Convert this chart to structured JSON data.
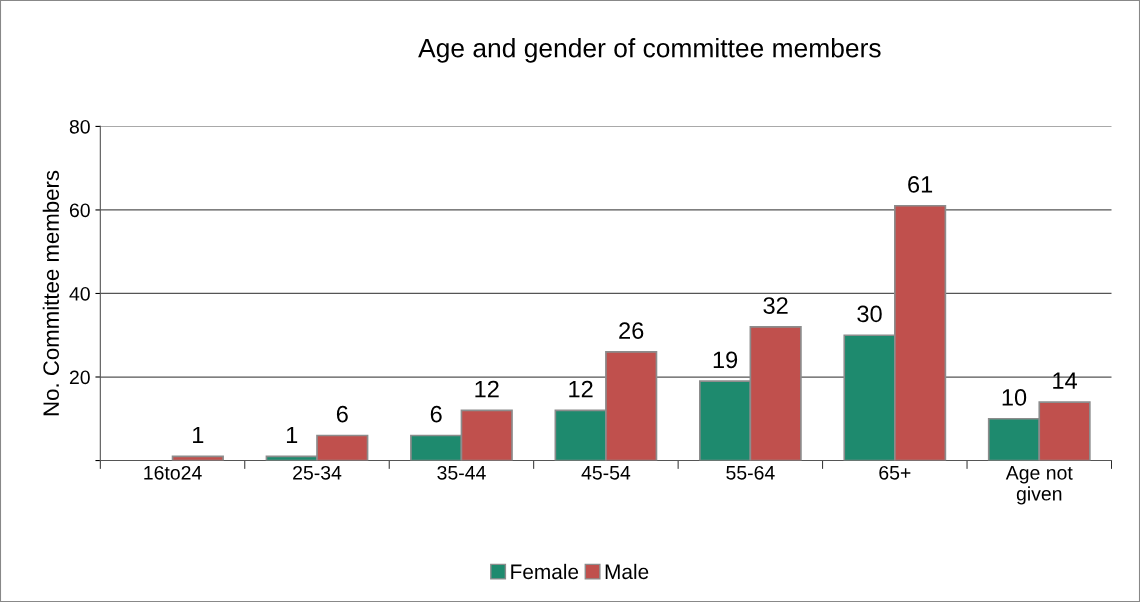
{
  "chart_data": {
    "type": "bar",
    "title": "Age and gender of committee members",
    "ylabel": "No. Committee members",
    "categories": [
      "16to24",
      "25-34",
      "35-44",
      "45-54",
      "55-64",
      "65+",
      "Age not given"
    ],
    "series": [
      {
        "name": "Female",
        "color": "#1e8a6e",
        "values": [
          null,
          1,
          6,
          12,
          19,
          30,
          10
        ]
      },
      {
        "name": "Male",
        "color": "#c0504d",
        "values": [
          1,
          6,
          12,
          26,
          32,
          61,
          14
        ]
      }
    ],
    "ylim": [
      0,
      80
    ],
    "yticks": [
      {
        "value": 0,
        "label": null
      },
      20,
      40,
      60,
      80
    ],
    "grid": "y",
    "legend": "bottom",
    "data_labels": true
  }
}
